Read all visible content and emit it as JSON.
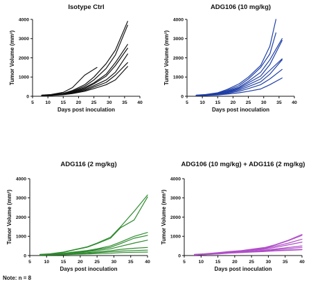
{
  "note": "Note: n = 8",
  "chart_data": [
    {
      "type": "line",
      "title": "Isotype Ctrl",
      "xlabel": "Days post inoculation",
      "ylabel": "Tumor Volume (mm³)",
      "xlim": [
        5,
        40
      ],
      "ylim": [
        0,
        4000
      ],
      "xticks": [
        5,
        10,
        15,
        20,
        25,
        30,
        35,
        40
      ],
      "yticks": [
        0,
        1000,
        2000,
        3000,
        4000
      ],
      "color": "#111111",
      "series": [
        {
          "x": [
            8,
            11,
            15,
            18,
            22,
            26
          ],
          "values": [
            60,
            90,
            200,
            450,
            1100,
            1500
          ]
        },
        {
          "x": [
            8,
            11,
            15,
            18,
            22,
            25,
            29,
            32,
            36
          ],
          "values": [
            50,
            80,
            150,
            300,
            600,
            1000,
            1700,
            2400,
            3900
          ]
        },
        {
          "x": [
            8,
            11,
            15,
            18,
            22,
            25,
            29,
            32,
            36
          ],
          "values": [
            50,
            70,
            140,
            260,
            520,
            850,
            1450,
            2150,
            3700
          ]
        },
        {
          "x": [
            8,
            11,
            15,
            18,
            22,
            25,
            29,
            32,
            36
          ],
          "values": [
            40,
            60,
            120,
            230,
            450,
            700,
            1150,
            1750,
            2700
          ]
        },
        {
          "x": [
            8,
            11,
            15,
            18,
            22,
            25,
            29,
            32,
            36
          ],
          "values": [
            40,
            60,
            110,
            200,
            400,
            650,
            1050,
            1600,
            2500
          ]
        },
        {
          "x": [
            8,
            11,
            15,
            18,
            22,
            25,
            29,
            32,
            36
          ],
          "values": [
            30,
            50,
            100,
            180,
            350,
            550,
            850,
            1250,
            2200
          ]
        },
        {
          "x": [
            8,
            11,
            15,
            18,
            22,
            25,
            29,
            32,
            36
          ],
          "values": [
            30,
            50,
            90,
            160,
            300,
            480,
            720,
            1100,
            1750
          ]
        },
        {
          "x": [
            8,
            11,
            15,
            18,
            22,
            25,
            29,
            32,
            36
          ],
          "values": [
            30,
            40,
            80,
            140,
            260,
            400,
            600,
            850,
            1550
          ]
        }
      ]
    },
    {
      "type": "line",
      "title": "ADG106 (10 mg/kg)",
      "xlabel": "Days post inoculation",
      "ylabel": "Tumor Volume (mm³)",
      "xlim": [
        5,
        40
      ],
      "ylim": [
        0,
        4000
      ],
      "xticks": [
        5,
        10,
        15,
        20,
        25,
        30,
        35,
        40
      ],
      "yticks": [
        0,
        1000,
        2000,
        3000,
        4000
      ],
      "color": "#1f3fa6",
      "series": [
        {
          "x": [
            8,
            11,
            15,
            18,
            22,
            25,
            29,
            32,
            34
          ],
          "values": [
            60,
            90,
            180,
            350,
            650,
            1000,
            1600,
            2600,
            4000
          ]
        },
        {
          "x": [
            8,
            11,
            15,
            18,
            22,
            25,
            29,
            32,
            34
          ],
          "values": [
            50,
            80,
            160,
            300,
            560,
            900,
            1500,
            2200,
            3300
          ]
        },
        {
          "x": [
            8,
            11,
            15,
            18,
            22,
            25,
            29,
            32,
            36
          ],
          "values": [
            50,
            70,
            140,
            260,
            480,
            780,
            1250,
            1900,
            3000
          ]
        },
        {
          "x": [
            8,
            11,
            15,
            18,
            22,
            25,
            29,
            32,
            36
          ],
          "values": [
            40,
            60,
            120,
            230,
            430,
            700,
            1050,
            1650,
            2900
          ]
        },
        {
          "x": [
            8,
            11,
            15,
            18,
            22,
            25,
            29,
            32,
            36
          ],
          "values": [
            40,
            60,
            110,
            200,
            380,
            600,
            900,
            1350,
            1950
          ]
        },
        {
          "x": [
            8,
            11,
            15,
            18,
            22,
            25,
            29,
            32,
            36
          ],
          "values": [
            30,
            50,
            100,
            180,
            320,
            500,
            750,
            1150,
            1900
          ]
        },
        {
          "x": [
            8,
            11,
            15,
            18,
            22,
            25,
            29,
            32,
            36
          ],
          "values": [
            30,
            50,
            90,
            150,
            260,
            400,
            600,
            900,
            1400
          ]
        },
        {
          "x": [
            8,
            11,
            15,
            18,
            22,
            25,
            29,
            32,
            36
          ],
          "values": [
            30,
            40,
            70,
            110,
            180,
            260,
            380,
            600,
            950
          ]
        }
      ]
    },
    {
      "type": "line",
      "title": "ADG116 (2 mg/kg)",
      "xlabel": "Days post inoculation",
      "ylabel": "Tumor Volume (mm³)",
      "xlim": [
        5,
        40
      ],
      "ylim": [
        0,
        4000
      ],
      "xticks": [
        5,
        10,
        15,
        20,
        25,
        30,
        35,
        40
      ],
      "yticks": [
        0,
        1000,
        2000,
        3000,
        4000
      ],
      "color": "#2e8b2e",
      "series": [
        {
          "x": [
            8,
            11,
            15,
            18,
            22,
            25,
            29,
            32,
            36,
            40
          ],
          "values": [
            60,
            90,
            180,
            300,
            450,
            650,
            950,
            1500,
            2300,
            3150
          ]
        },
        {
          "x": [
            8,
            11,
            15,
            18,
            22,
            25,
            29,
            32,
            36,
            40
          ],
          "values": [
            50,
            80,
            160,
            280,
            430,
            620,
            900,
            1450,
            1850,
            3050
          ]
        },
        {
          "x": [
            8,
            11,
            15,
            18,
            22,
            25,
            29,
            32,
            36,
            40
          ],
          "values": [
            40,
            60,
            110,
            180,
            260,
            350,
            500,
            700,
            1000,
            1200
          ]
        },
        {
          "x": [
            8,
            11,
            15,
            18,
            22,
            25,
            29,
            32,
            36,
            40
          ],
          "values": [
            40,
            60,
            100,
            160,
            230,
            310,
            430,
            620,
            900,
            1050
          ]
        },
        {
          "x": [
            8,
            11,
            15,
            18,
            22,
            25,
            29,
            32,
            36,
            40
          ],
          "values": [
            30,
            50,
            90,
            140,
            200,
            260,
            350,
            480,
            650,
            800
          ]
        },
        {
          "x": [
            8,
            11,
            15,
            18,
            22,
            25,
            29,
            32,
            36,
            40
          ],
          "values": [
            30,
            40,
            70,
            110,
            150,
            190,
            250,
            320,
            380,
            420
          ]
        },
        {
          "x": [
            8,
            11,
            15,
            18,
            22,
            25,
            29,
            32,
            36,
            40
          ],
          "values": [
            30,
            40,
            60,
            90,
            120,
            150,
            190,
            230,
            260,
            280
          ]
        },
        {
          "x": [
            8,
            11,
            15,
            18,
            22,
            25,
            29,
            32,
            36,
            40
          ],
          "values": [
            20,
            30,
            40,
            60,
            80,
            100,
            120,
            150,
            170,
            180
          ]
        }
      ]
    },
    {
      "type": "line",
      "title": "ADG106 (10 mg/kg) + ADG116 (2 mg/kg)",
      "xlabel": "Days post inoculation",
      "ylabel": "Tumor Volume (mm³)",
      "xlim": [
        5,
        40
      ],
      "ylim": [
        0,
        4000
      ],
      "xticks": [
        5,
        10,
        15,
        20,
        25,
        30,
        35,
        40
      ],
      "yticks": [
        0,
        1000,
        2000,
        3000,
        4000
      ],
      "color": "#b04fc8",
      "series": [
        {
          "x": [
            8,
            11,
            15,
            18,
            22,
            25,
            29,
            32,
            36,
            40
          ],
          "values": [
            60,
            90,
            150,
            200,
            260,
            330,
            420,
            560,
            800,
            1100
          ]
        },
        {
          "x": [
            8,
            11,
            15,
            18,
            22,
            25,
            29,
            32,
            36,
            40
          ],
          "values": [
            50,
            80,
            140,
            190,
            250,
            310,
            400,
            540,
            780,
            1050
          ]
        },
        {
          "x": [
            8,
            11,
            15,
            18,
            22,
            25,
            29,
            32,
            36,
            40
          ],
          "values": [
            50,
            70,
            130,
            180,
            230,
            290,
            370,
            480,
            650,
            850
          ]
        },
        {
          "x": [
            8,
            11,
            15,
            18,
            22,
            25,
            29,
            32,
            36,
            40
          ],
          "values": [
            40,
            70,
            120,
            170,
            220,
            270,
            330,
            420,
            560,
            700
          ]
        },
        {
          "x": [
            8,
            11,
            15,
            18,
            22,
            25,
            29,
            32,
            36,
            40
          ],
          "values": [
            40,
            60,
            110,
            150,
            190,
            230,
            280,
            340,
            420,
            500
          ]
        },
        {
          "x": [
            8,
            11,
            15,
            18,
            22,
            25,
            29,
            32,
            36,
            40
          ],
          "values": [
            30,
            60,
            100,
            140,
            180,
            220,
            260,
            300,
            360,
            420
          ]
        },
        {
          "x": [
            8,
            11,
            15,
            18,
            22,
            25,
            29,
            32,
            36,
            40
          ],
          "values": [
            30,
            50,
            90,
            130,
            170,
            200,
            230,
            260,
            290,
            320
          ]
        },
        {
          "x": [
            8,
            11,
            15,
            18,
            22,
            25,
            29,
            32,
            36,
            40
          ],
          "values": [
            30,
            50,
            80,
            120,
            150,
            180,
            210,
            240,
            270,
            300
          ]
        }
      ]
    }
  ]
}
